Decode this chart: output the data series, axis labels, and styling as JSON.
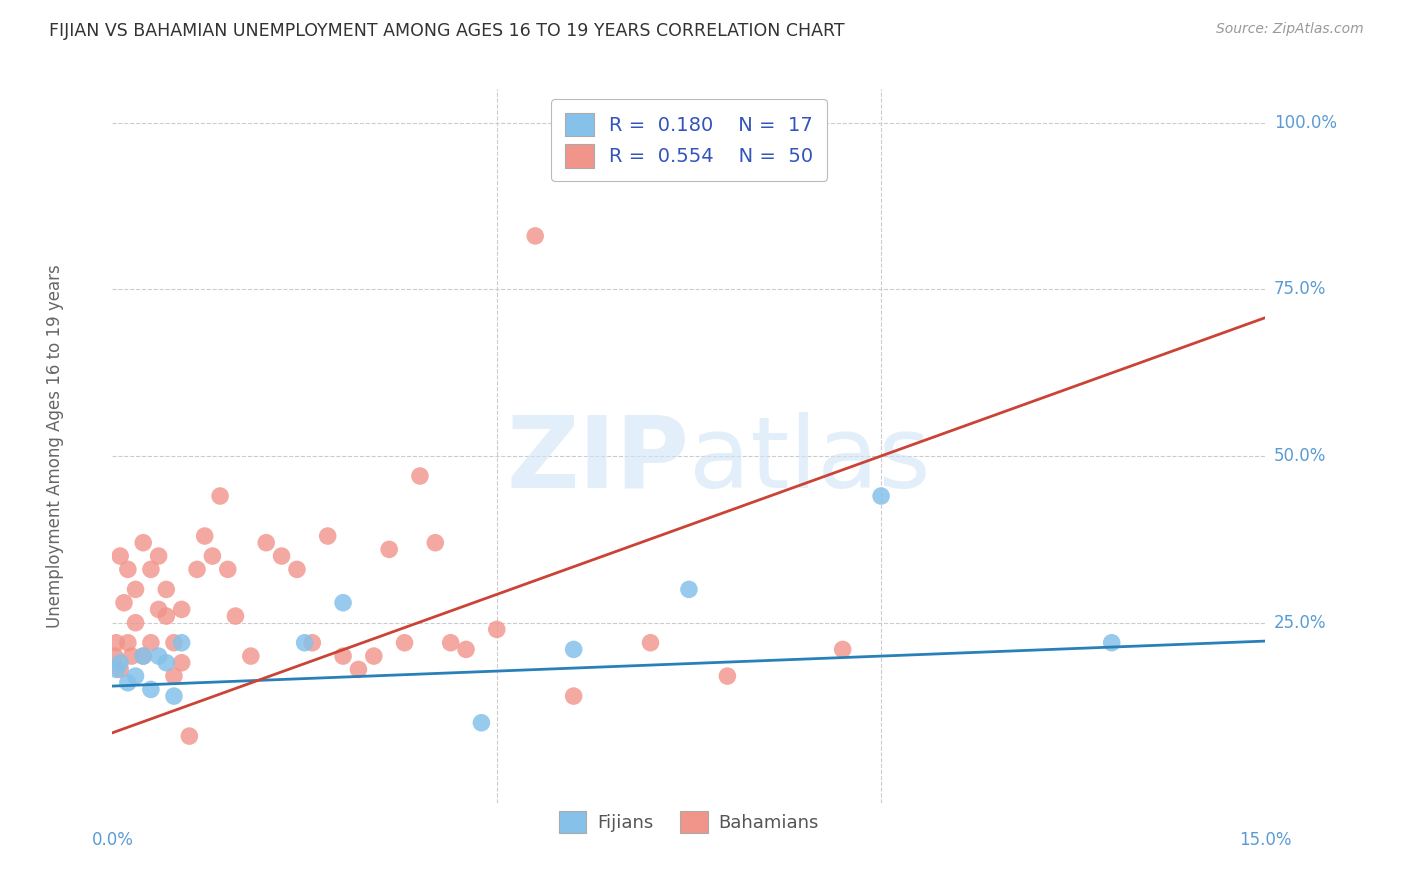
{
  "title": "FIJIAN VS BAHAMIAN UNEMPLOYMENT AMONG AGES 16 TO 19 YEARS CORRELATION CHART",
  "source": "Source: ZipAtlas.com",
  "ylabel": "Unemployment Among Ages 16 to 19 years",
  "xlim": [
    0.0,
    0.15
  ],
  "ylim": [
    -0.02,
    1.05
  ],
  "legend_fijians": "Fijians",
  "legend_bahamians": "Bahamians",
  "R_fijian": 0.18,
  "N_fijian": 17,
  "R_bahamian": 0.554,
  "N_bahamian": 50,
  "fijian_color": "#85C1E9",
  "bahamian_color": "#F1948A",
  "fijian_line_color": "#2980B9",
  "bahamian_line_color": "#CB4335",
  "background_color": "#FFFFFF",
  "grid_color": "#CCCCCC",
  "title_color": "#333333",
  "source_color": "#999999",
  "axis_label_color": "#5B9BD5",
  "fijian_x": [
    0.0005,
    0.001,
    0.002,
    0.003,
    0.004,
    0.005,
    0.006,
    0.007,
    0.008,
    0.009,
    0.025,
    0.03,
    0.048,
    0.06,
    0.075,
    0.1,
    0.13
  ],
  "fijian_y": [
    0.18,
    0.19,
    0.16,
    0.17,
    0.2,
    0.15,
    0.2,
    0.19,
    0.14,
    0.22,
    0.22,
    0.28,
    0.1,
    0.21,
    0.3,
    0.44,
    0.22
  ],
  "bahamian_x": [
    0.0003,
    0.0005,
    0.001,
    0.001,
    0.0015,
    0.002,
    0.002,
    0.0025,
    0.003,
    0.003,
    0.004,
    0.004,
    0.005,
    0.005,
    0.006,
    0.006,
    0.007,
    0.007,
    0.008,
    0.008,
    0.009,
    0.009,
    0.01,
    0.011,
    0.012,
    0.013,
    0.014,
    0.015,
    0.016,
    0.018,
    0.02,
    0.022,
    0.024,
    0.026,
    0.028,
    0.03,
    0.032,
    0.034,
    0.036,
    0.038,
    0.04,
    0.042,
    0.044,
    0.046,
    0.05,
    0.055,
    0.06,
    0.07,
    0.08,
    0.095
  ],
  "bahamian_y": [
    0.2,
    0.22,
    0.18,
    0.35,
    0.28,
    0.22,
    0.33,
    0.2,
    0.25,
    0.3,
    0.2,
    0.37,
    0.22,
    0.33,
    0.27,
    0.35,
    0.26,
    0.3,
    0.22,
    0.17,
    0.27,
    0.19,
    0.08,
    0.33,
    0.38,
    0.35,
    0.44,
    0.33,
    0.26,
    0.2,
    0.37,
    0.35,
    0.33,
    0.22,
    0.38,
    0.2,
    0.18,
    0.2,
    0.36,
    0.22,
    0.47,
    0.37,
    0.22,
    0.21,
    0.24,
    0.83,
    0.14,
    0.22,
    0.17,
    0.21
  ],
  "ytick_vals": [
    0.0,
    0.25,
    0.5,
    0.75,
    1.0
  ],
  "ytick_labels": [
    "",
    "25.0%",
    "50.0%",
    "75.0%",
    "100.0%"
  ],
  "xtick_vals": [
    0.0,
    0.15
  ],
  "xtick_labels": [
    "0.0%",
    "15.0%"
  ],
  "grid_xvals": [
    0.05,
    0.1
  ],
  "grid_yvals": [
    0.25,
    0.5,
    0.75,
    1.0
  ]
}
